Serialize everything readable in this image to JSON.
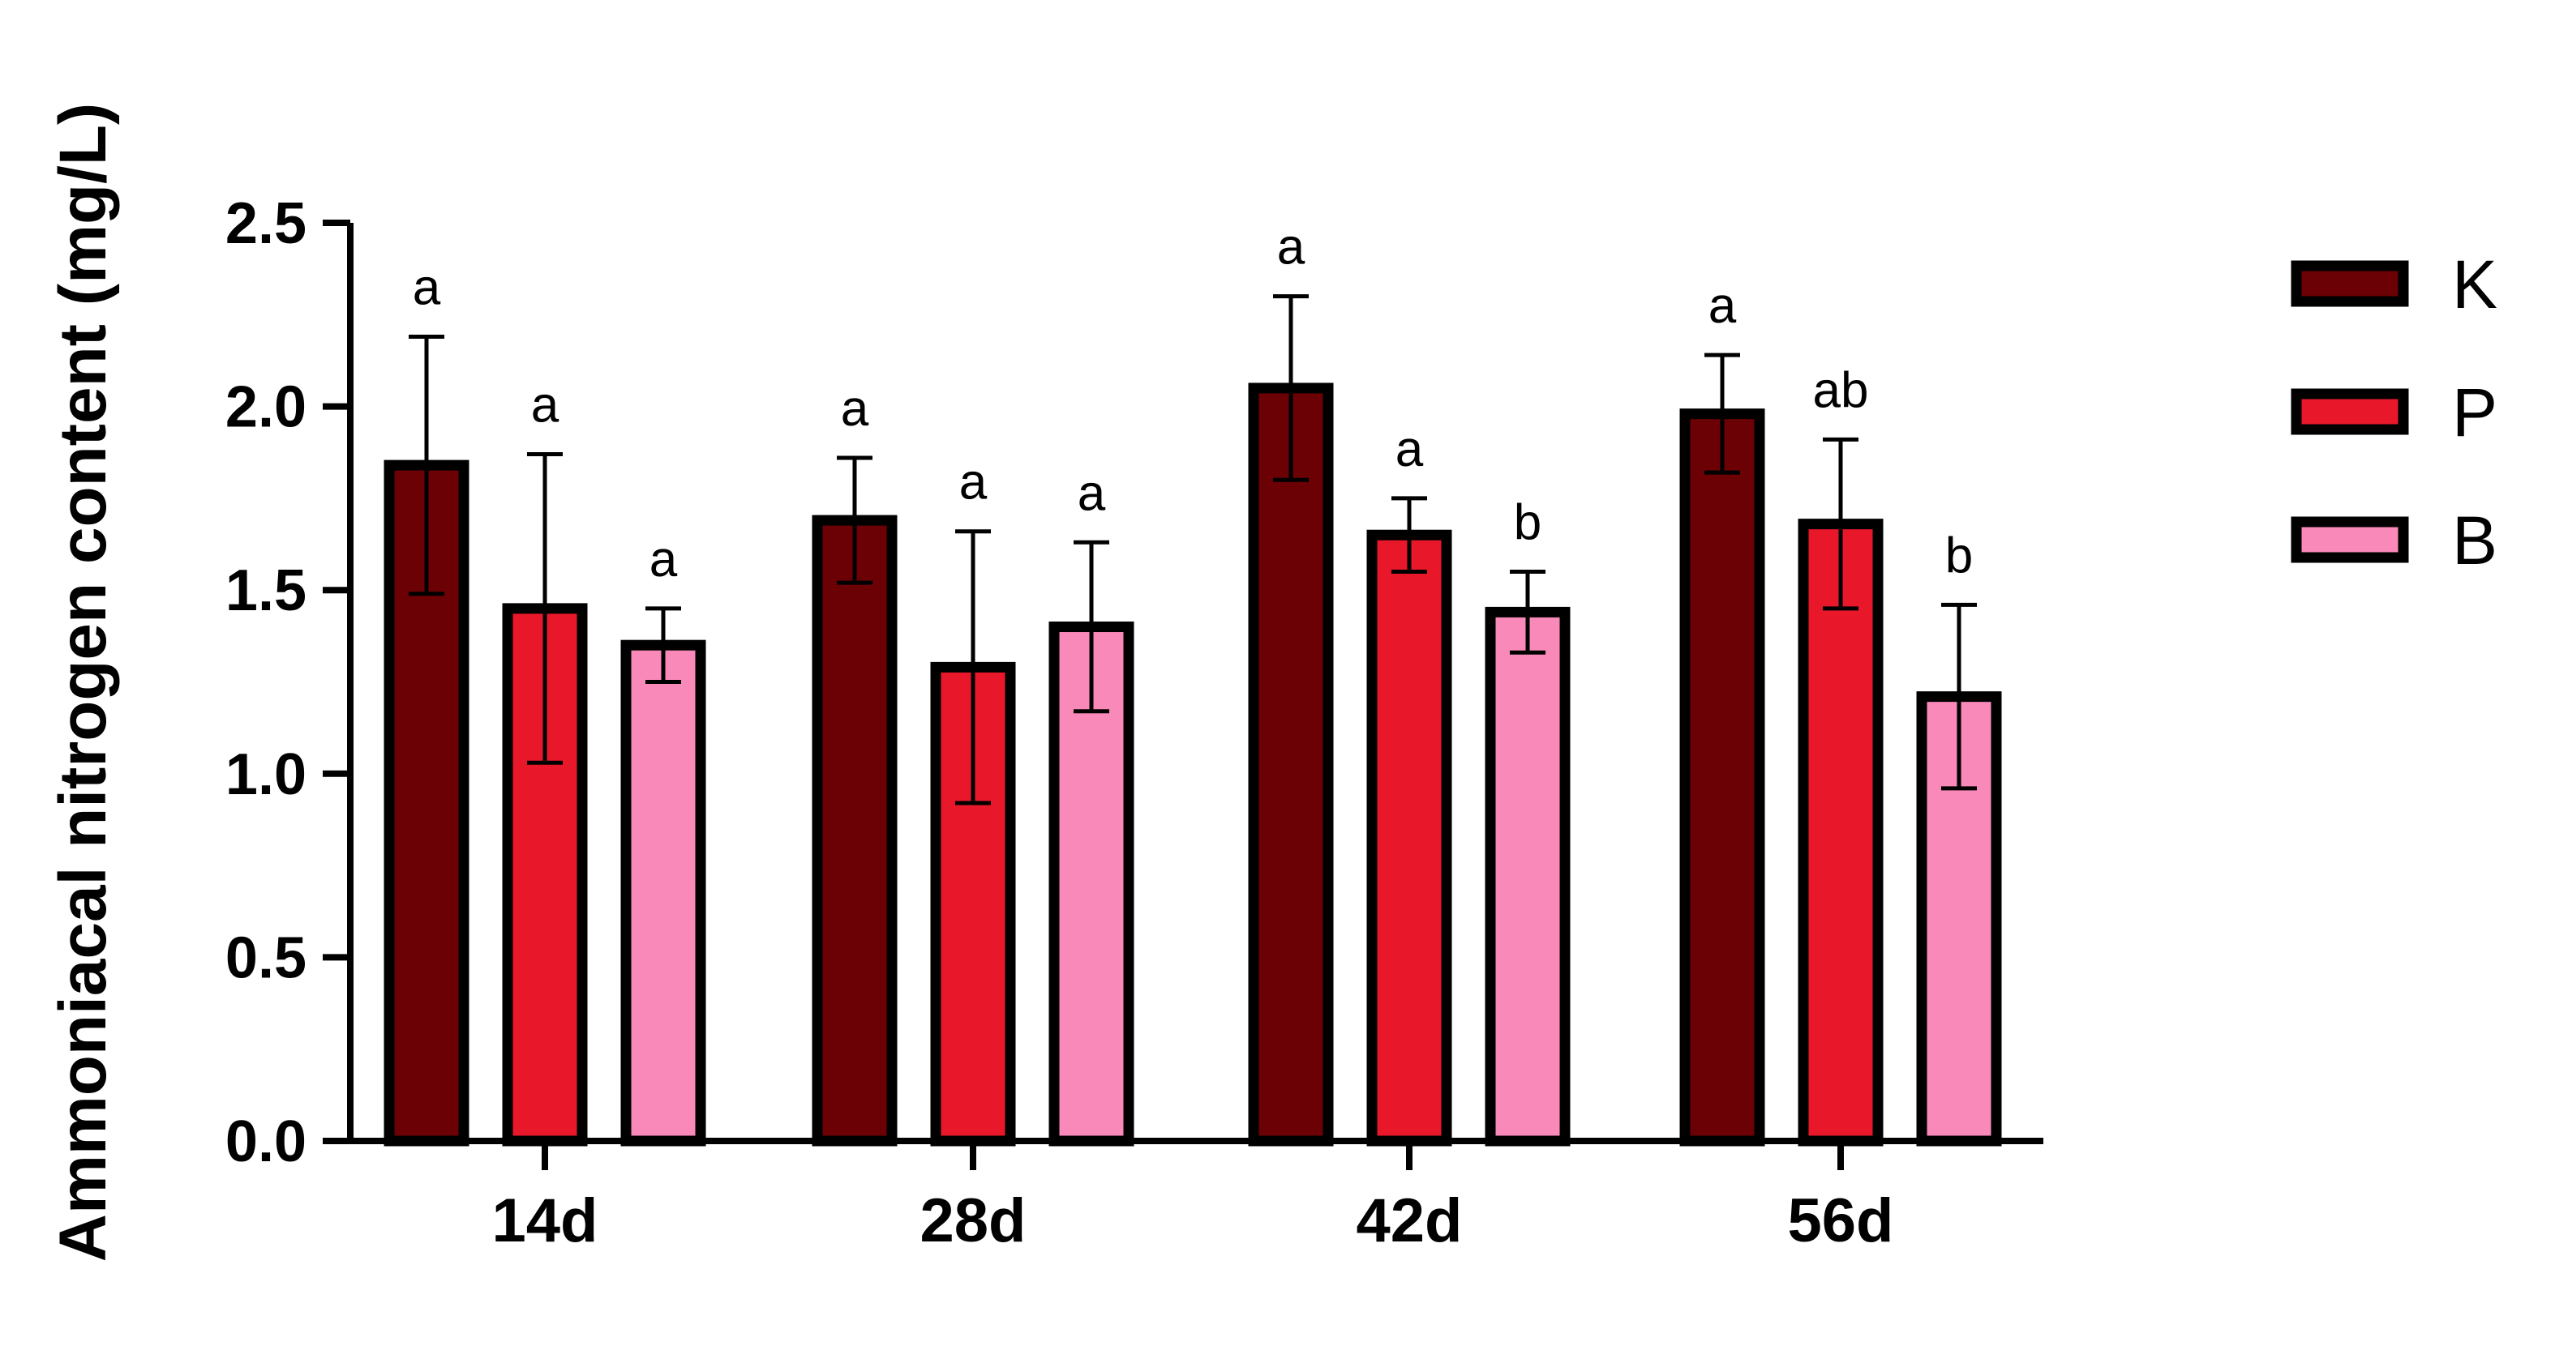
{
  "chart_data": {
    "type": "bar",
    "ylabel": "Ammoniacal nitrogen content (mg/L)",
    "xlabel": "",
    "ylim": [
      0,
      2.5
    ],
    "yticks": [
      "0.0",
      "0.5",
      "1.0",
      "1.5",
      "2.0",
      "2.5"
    ],
    "categories": [
      "14d",
      "28d",
      "42d",
      "56d"
    ],
    "legend_position": "top-right",
    "grid": false,
    "series": [
      {
        "name": "K",
        "color": "#6b0005",
        "values": [
          1.84,
          1.69,
          2.05,
          1.98
        ],
        "errors": [
          0.35,
          0.17,
          0.25,
          0.16
        ],
        "significance": [
          "a",
          "a",
          "a",
          "a"
        ]
      },
      {
        "name": "P",
        "color": "#e8182a",
        "values": [
          1.45,
          1.29,
          1.65,
          1.68
        ],
        "errors": [
          0.42,
          0.37,
          0.1,
          0.23
        ],
        "significance": [
          "a",
          "a",
          "a",
          "ab"
        ]
      },
      {
        "name": "B",
        "color": "#f989b8",
        "values": [
          1.35,
          1.4,
          1.44,
          1.21
        ],
        "errors": [
          0.1,
          0.23,
          0.11,
          0.25
        ],
        "significance": [
          "a",
          "a",
          "b",
          "b"
        ]
      }
    ]
  }
}
